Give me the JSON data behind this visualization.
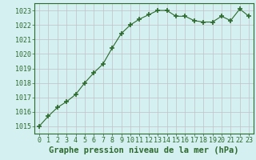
{
  "x": [
    0,
    1,
    2,
    3,
    4,
    5,
    6,
    7,
    8,
    9,
    10,
    11,
    12,
    13,
    14,
    15,
    16,
    17,
    18,
    19,
    20,
    21,
    22,
    23
  ],
  "y": [
    1015.0,
    1015.7,
    1016.3,
    1016.7,
    1017.2,
    1018.0,
    1018.7,
    1019.3,
    1020.4,
    1021.4,
    1022.0,
    1022.4,
    1022.7,
    1023.0,
    1023.0,
    1022.6,
    1022.6,
    1022.3,
    1022.2,
    1022.2,
    1022.6,
    1022.3,
    1023.1,
    1022.6
  ],
  "ylim": [
    1014.5,
    1023.5
  ],
  "xlim": [
    -0.5,
    23.5
  ],
  "yticks": [
    1015,
    1016,
    1017,
    1018,
    1019,
    1020,
    1021,
    1022,
    1023
  ],
  "xticks": [
    0,
    1,
    2,
    3,
    4,
    5,
    6,
    7,
    8,
    9,
    10,
    11,
    12,
    13,
    14,
    15,
    16,
    17,
    18,
    19,
    20,
    21,
    22,
    23
  ],
  "line_color": "#2d6a2d",
  "marker": "+",
  "marker_size": 5,
  "bg_color": "#d4f0f0",
  "grid_color": "#c0c0c8",
  "xlabel": "Graphe pression niveau de la mer (hPa)",
  "xlabel_color": "#2d6a2d",
  "tick_color": "#2d6a2d",
  "label_fontsize": 6.0,
  "xlabel_fontsize": 7.5,
  "spine_color": "#2d6a2d"
}
